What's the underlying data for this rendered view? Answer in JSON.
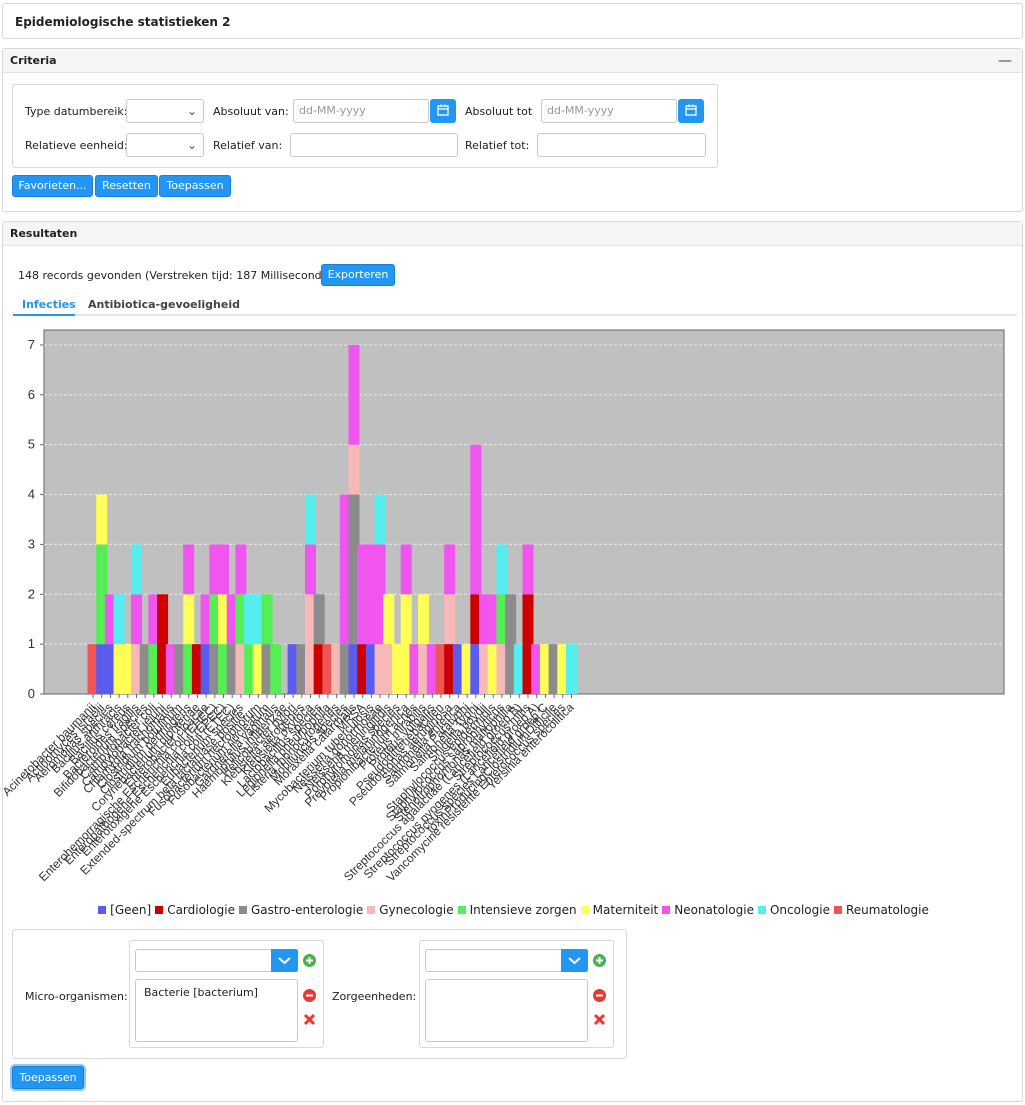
{
  "page_title": "Epidemiologische statistieken 2",
  "criteria": {
    "header": "Criteria",
    "collapse_symbol": "—",
    "type_datumbereik_label": "Type datumbereik:",
    "absoluut_van_label": "Absoluut van:",
    "absoluut_van_placeholder": "dd-MM-yyyy",
    "absoluut_tot_label": "Absoluut tot",
    "absoluut_tot_placeholder": "dd-MM-yyyy",
    "relatieve_eenheid_label": "Relatieve eenheid:",
    "relatief_van_label": "Relatief van:",
    "relatief_tot_label": "Relatief tot:",
    "buttons": {
      "favorieten": "Favorieten...",
      "resetten": "Resetten",
      "toepassen": "Toepassen"
    }
  },
  "results": {
    "header": "Resultaten",
    "summary": "148 records gevonden (Verstreken tijd: 187 Milliseconden)",
    "export_button": "Exporteren",
    "tabs": [
      "Infecties",
      "Antibiotica-gevoeligheid"
    ]
  },
  "filters": {
    "micro_label": "Micro-organismen:",
    "micro_items": [
      "Bacterie [bacterium]"
    ],
    "zorg_label": "Zorgeenheden:",
    "apply_button": "Toepassen"
  },
  "colors": {
    "accent": "#2196f3",
    "[Geen]": "#5b5bee",
    "Cardiologie": "#cc0000",
    "Gastro-enterologie": "#8c8c8c",
    "Gynecologie": "#f7b8b8",
    "Intensieve zorgen": "#55ee55",
    "Materniteit": "#ffff55",
    "Neonatologie": "#f055f0",
    "Oncologie": "#55eeee",
    "Reumatologie": "#ee5555"
  },
  "chart_data": {
    "type": "bar",
    "stacked": true,
    "ylim": [
      0,
      7.3
    ],
    "yticks": [
      0,
      1,
      2,
      3,
      4,
      5,
      6,
      7
    ],
    "grid": true,
    "legend_position": "bottom",
    "legend": [
      "[Geen]",
      "Cardiologie",
      "Gastro-enterologie",
      "Gynecologie",
      "Intensieve zorgen",
      "Materniteit",
      "Neonatologie",
      "Oncologie",
      "Reumatologie"
    ],
    "categories": [
      "Acinetobacter baumanii",
      "Actinomyces israelii",
      "Aeromonas species",
      "Bacillus anthracis",
      "Bacillus cereus",
      "Bacteroides fragilis",
      "Bifidobacterium species",
      "Campylobacter coli",
      "Campylobacter jejuni",
      "Chlamydia trachomatis",
      "Clostridium botulinum",
      "Clostridium perfringens",
      "Corynebacterium diphteriae",
      "Enterobacter cloacae",
      "Enterohemorragische Escherichia coli (EHEC)",
      "Enteropathogene Escherichia coli (EPEC)",
      "Enterotoxigene Escherichia coli (ETEC)",
      "Eubacterium species",
      "Extended-spectrum beta lactamase positie...",
      "Fusobacterium necrophorum",
      "Fusobacterium nucleatum",
      "Gardnerella vaginalis",
      "Haemophilus influenzae",
      "Helicobacter pylori",
      "Klebsiella aerogenes",
      "Klebsiella oxytoca",
      "Lactobacillus species",
      "Legionella pneumophila",
      "Listeria monocytogenes",
      "Mobiluncus species",
      "Moraxella catarrhalis",
      "MRSA",
      "Mycobacterium tuberculosis",
      "Neisseria gonorrhoeae",
      "Neisseria meningitidis",
      "Porphyromonas species",
      "Prevotella melaninogenica",
      "Propionibacterium acnes",
      "Proteus mirabilis",
      "Proteus vulgaris",
      "Pseudodifteriebacillen",
      "Pseudomonas aeruginosa",
      "Salmonella enterica",
      "Salmonella Paratyphi",
      "Salmonella Typhi",
      "Shigella boydii",
      "Staphylococcus epidermidis",
      "Staphylococcus saprophyticus",
      "Stenotrophomonas maltophilia",
      "Streptococcus agalactiae (Lancefield groep B)",
      "Streptococcus mitis",
      "Streptococcus pyogenes (Lancefield groep A)",
      "Streptococcus species Lancefield groep C",
      "toxinProducingClostridiumDifficile",
      "Vancomycine resistente Enterococcus species",
      "Yersinia enterocolitica"
    ],
    "series": [
      {
        "name": "[Geen]",
        "values": [
          0,
          1,
          1,
          0,
          0,
          0,
          0,
          0,
          0,
          0,
          0,
          0,
          0,
          1,
          0,
          0,
          0,
          0,
          0,
          0,
          0,
          0,
          0,
          1,
          0,
          0,
          0,
          0,
          0,
          0,
          1,
          0,
          1,
          0,
          0,
          0,
          0,
          0,
          0,
          0,
          0,
          0,
          1,
          0,
          1,
          0,
          0,
          0,
          0,
          0,
          0,
          0,
          0,
          0,
          0,
          0
        ]
      },
      {
        "name": "Cardiologie",
        "values": [
          0,
          0,
          0,
          0,
          0,
          0,
          0,
          0,
          2,
          0,
          0,
          0,
          1,
          0,
          0,
          0,
          0,
          0,
          0,
          0,
          0,
          0,
          0,
          0,
          0,
          0,
          1,
          0,
          0,
          0,
          0,
          1,
          0,
          0,
          0,
          0,
          0,
          0,
          0,
          0,
          0,
          1,
          0,
          0,
          1,
          0,
          0,
          0,
          0,
          0,
          2,
          0,
          0,
          0,
          0,
          0
        ]
      },
      {
        "name": "Gastro-enterologie",
        "values": [
          0,
          0,
          0,
          0,
          0,
          0,
          1,
          0,
          0,
          0,
          1,
          0,
          0,
          0,
          1,
          0,
          1,
          0,
          0,
          0,
          1,
          0,
          0,
          0,
          1,
          0,
          1,
          0,
          0,
          1,
          3,
          0,
          0,
          0,
          0,
          0,
          0,
          0,
          0,
          0,
          0,
          0,
          0,
          0,
          0,
          0,
          0,
          0,
          2,
          0,
          0,
          0,
          0,
          1,
          0,
          0
        ]
      },
      {
        "name": "Gynecologie",
        "values": [
          0,
          0,
          0,
          0,
          0,
          1,
          0,
          0,
          0,
          0,
          0,
          0,
          0,
          0,
          0,
          0,
          0,
          1,
          0,
          0,
          0,
          0,
          0,
          0,
          0,
          2,
          0,
          0,
          1,
          0,
          1,
          0,
          0,
          1,
          1,
          0,
          0,
          0,
          1,
          0,
          0,
          1,
          0,
          0,
          0,
          1,
          0,
          1,
          0,
          0,
          0,
          0,
          0,
          0,
          0,
          0
        ]
      },
      {
        "name": "Intensieve zorgen",
        "values": [
          0,
          2,
          0,
          0,
          0,
          0,
          0,
          1,
          0,
          0,
          0,
          1,
          0,
          0,
          1,
          1,
          0,
          1,
          1,
          0,
          1,
          1,
          0,
          0,
          0,
          0,
          0,
          0,
          0,
          0,
          0,
          0,
          0,
          0,
          0,
          0,
          0,
          0,
          0,
          0,
          0,
          0,
          0,
          0,
          0,
          0,
          0,
          1,
          0,
          0,
          0,
          0,
          0,
          0,
          0,
          0
        ]
      },
      {
        "name": "Materniteit",
        "values": [
          0,
          1,
          0,
          1,
          1,
          0,
          0,
          0,
          0,
          0,
          0,
          1,
          0,
          0,
          0,
          1,
          0,
          0,
          0,
          1,
          0,
          0,
          0,
          0,
          0,
          0,
          0,
          0,
          0,
          0,
          0,
          0,
          0,
          0,
          1,
          1,
          2,
          0,
          1,
          0,
          0,
          0,
          0,
          1,
          0,
          0,
          1,
          0,
          0,
          0,
          0,
          0,
          1,
          0,
          1,
          0
        ]
      },
      {
        "name": "Neonatologie",
        "values": [
          0,
          0,
          1,
          0,
          0,
          1,
          0,
          1,
          0,
          1,
          0,
          1,
          0,
          1,
          1,
          1,
          1,
          1,
          0,
          0,
          0,
          0,
          0,
          0,
          0,
          1,
          0,
          0,
          0,
          3,
          2,
          2,
          2,
          2,
          0,
          0,
          1,
          1,
          0,
          1,
          0,
          1,
          0,
          0,
          3,
          1,
          1,
          0,
          0,
          0,
          1,
          1,
          0,
          0,
          0,
          0
        ]
      },
      {
        "name": "Oncologie",
        "values": [
          0,
          0,
          0,
          1,
          0,
          1,
          0,
          0,
          0,
          0,
          0,
          0,
          0,
          0,
          0,
          0,
          0,
          0,
          1,
          1,
          0,
          0,
          0,
          0,
          0,
          1,
          0,
          0,
          0,
          0,
          0,
          0,
          0,
          1,
          0,
          0,
          0,
          0,
          0,
          0,
          0,
          0,
          0,
          0,
          0,
          0,
          0,
          1,
          0,
          1,
          0,
          0,
          0,
          0,
          0,
          1
        ]
      },
      {
        "name": "Reumatologie",
        "values": [
          1,
          0,
          0,
          0,
          0,
          0,
          0,
          0,
          0,
          0,
          0,
          0,
          0,
          0,
          0,
          0,
          0,
          0,
          0,
          0,
          0,
          0,
          0,
          0,
          0,
          0,
          0,
          1,
          0,
          0,
          0,
          0,
          0,
          0,
          0,
          0,
          0,
          0,
          0,
          0,
          1,
          0,
          0,
          0,
          0,
          0,
          0,
          0,
          0,
          0,
          0,
          0,
          0,
          0,
          0,
          0
        ]
      }
    ]
  }
}
